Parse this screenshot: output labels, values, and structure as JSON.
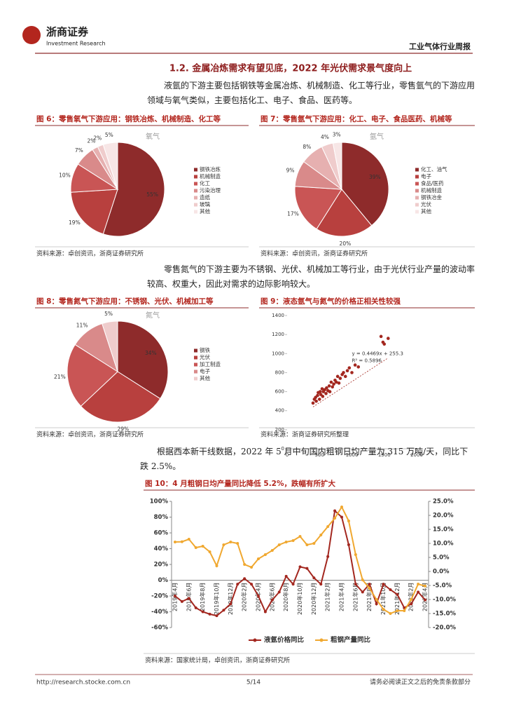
{
  "header": {
    "logo_cn": "浙商证券",
    "logo_en": "Investment Research",
    "report": "工业气体行业周报"
  },
  "section_title": "1.2. 金属冶炼需求有望见底，2022 年光伏需求景气度向上",
  "paragraphs": [
    "液氩的下游主要包括钢铁等金属冶炼、机械制造、化工等行业，零售氩气的下游应用领域与氧气类似，主要包括化工、电子、食品、医药等。",
    "零售氮气的下游主要为不锈钢、光伏、机械加工等行业，由于光伏行业产量的波动率较高、权重大，因此对需求的边际影响较大。",
    "根据西本新干线数据，2022 年 5 月中旬国内粗钢日均产量为 315 万吨/天，同比下跌 2.5%。"
  ],
  "figures": [
    {
      "title": "图 6：零售氧气下游应用：钢铁冶炼、机械制造、化工等",
      "source": "资料来源：卓创资讯，浙商证券研究所",
      "chart": {
        "type": "pie",
        "title": "氧气",
        "categories": [
          "钢铁冶炼",
          "机械制造",
          "化工",
          "污染治理",
          "造纸",
          "玻璃",
          "其他"
        ],
        "values": [
          55,
          19,
          10,
          7,
          2,
          2,
          5
        ],
        "value_labels": [
          "55%",
          "19%",
          "10%",
          "7%",
          "2%",
          "2%",
          "5%"
        ],
        "colors": [
          "#8e2b2b",
          "#b8403e",
          "#c95555",
          "#d98a8a",
          "#e6b0b0",
          "#efcccc",
          "#f7e6e6"
        ]
      }
    },
    {
      "title": "图 7：零售氩气下游应用：化工、电子、食品医药、机械等",
      "source": "资料来源：卓创资讯，浙商证券研究所",
      "chart": {
        "type": "pie",
        "title": "氩气",
        "categories": [
          "化工、油气",
          "电子",
          "食品/医药",
          "机械制造",
          "钢铁冶金",
          "光伏",
          "其他"
        ],
        "values": [
          39,
          20,
          17,
          9,
          8,
          4,
          3
        ],
        "value_labels": [
          "39%",
          "20%",
          "17%",
          "9%",
          "8%",
          "4%",
          "3%"
        ],
        "colors": [
          "#8e2b2b",
          "#b8403e",
          "#c95555",
          "#d98a8a",
          "#e6b0b0",
          "#efcccc",
          "#f7e6e6"
        ]
      }
    },
    {
      "title": "图 8：零售氮气下游应用：不锈钢、光伏、机械加工等",
      "source": "资料来源：卓创资讯，浙商证券研究所",
      "chart": {
        "type": "pie",
        "title": "氮气",
        "categories": [
          "钢铁",
          "光伏",
          "加工制造",
          "电子",
          "其他"
        ],
        "values": [
          34,
          29,
          21,
          11,
          5
        ],
        "value_labels": [
          "34%",
          "29%",
          "21%",
          "11%",
          "5%"
        ],
        "colors": [
          "#8e2b2b",
          "#b8403e",
          "#c95555",
          "#d98a8a",
          "#efcccc"
        ]
      }
    },
    {
      "title": "图 9：液态氩气与氮气的价格正相关性较强",
      "source": "资料来源：浙商证券研究所整理",
      "chart": {
        "type": "scatter",
        "color": "#a3271f",
        "annotations": [
          "y = 0.4469x + 255.3",
          "R² = 0.5896"
        ],
        "x": [
          400,
          420,
          440,
          450,
          470,
          480,
          500,
          510,
          520,
          540,
          550,
          560,
          580,
          600,
          610,
          630,
          650,
          660,
          680,
          700,
          720,
          740,
          760,
          780,
          800,
          820,
          850,
          870,
          900,
          930,
          960,
          1000,
          1050,
          1100,
          1450,
          1480,
          1500,
          1560
        ],
        "y": [
          480,
          520,
          540,
          500,
          560,
          590,
          520,
          600,
          570,
          630,
          550,
          600,
          620,
          580,
          640,
          610,
          660,
          600,
          700,
          650,
          680,
          720,
          700,
          760,
          690,
          740,
          780,
          800,
          760,
          820,
          850,
          800,
          880,
          860,
          1180,
          1120,
          1100,
          1160
        ],
        "xlim": [
          0,
          2000
        ],
        "xticks": [
          0,
          500,
          1000,
          1500,
          2000
        ],
        "ylim": [
          0,
          1400
        ],
        "yticks": [
          0,
          200,
          400,
          600,
          800,
          1000,
          1200,
          1400
        ]
      }
    },
    {
      "title": "图 10：4 月粗钢日均产量同比降低 5.2%，跌幅有所扩大",
      "source": "资料来源：国家统计局，卓创资讯，浙商证券研究所",
      "chart": {
        "type": "line",
        "categories": [
          "2019年4月",
          null,
          "2019年6月",
          null,
          "2019年8月",
          null,
          "2019年10月",
          null,
          "2019年12月",
          null,
          "2020年2月",
          null,
          "2020年4月",
          null,
          "2020年6月",
          null,
          "2020年8月",
          null,
          "2020年10月",
          null,
          "2020年12月",
          null,
          "2021年2月",
          null,
          "2021年4月",
          null,
          "2021年6月",
          null,
          "2021年8月",
          null,
          "2021年10月",
          null,
          "2021年12月",
          null,
          "2022年2月",
          null,
          "2022年4月"
        ],
        "series": [
          {
            "name": "液氩价格同比",
            "color": "#a3271f",
            "values": [
              -20,
              -27,
              -23,
              -35,
              -40,
              -43,
              -45,
              -38,
              -30,
              -5,
              2,
              -5,
              -20,
              -40,
              -25,
              -15,
              5,
              -5,
              17,
              15,
              3,
              -5,
              30,
              88,
              80,
              45,
              -5,
              -15,
              -5,
              -30,
              -5,
              -12,
              -18,
              -35,
              -30,
              -15,
              -25
            ]
          },
          {
            "name": "粗钢产量同比",
            "color": "#f0a830",
            "axis": "y2",
            "values": [
              10.5,
              10.6,
              11.5,
              8.5,
              9,
              7,
              2,
              9.5,
              10.5,
              10,
              2.5,
              1.5,
              4.5,
              6,
              7.5,
              9.5,
              10.5,
              11,
              12.5,
              9.5,
              10,
              13,
              16,
              19,
              23,
              18,
              6,
              -3,
              -6,
              -10,
              -13.5,
              -15,
              -14,
              -14,
              -10,
              -4.5,
              -5.2
            ]
          }
        ],
        "ylim": [
          -60,
          100
        ],
        "yticks": [
          {
            "value": -60,
            "label": "-60%"
          },
          {
            "value": -40,
            "label": "-40%"
          },
          {
            "value": -20,
            "label": "-20%"
          },
          {
            "value": 0,
            "label": "0%"
          },
          {
            "value": 20,
            "label": "20%"
          },
          {
            "value": 40,
            "label": "40%"
          },
          {
            "value": 60,
            "label": "60%"
          },
          {
            "value": 80,
            "label": "80%"
          },
          {
            "value": 100,
            "label": "100%"
          }
        ],
        "y2lim": [
          -20,
          25
        ],
        "y2ticks": [
          {
            "value": -20,
            "label": "-20.0%"
          },
          {
            "value": -15,
            "label": "-15.0%"
          },
          {
            "value": -10,
            "label": "-10.0%"
          },
          {
            "value": -5,
            "label": "-5.0%"
          },
          {
            "value": 0,
            "label": "0.0%"
          },
          {
            "value": 5,
            "label": "5.0%"
          },
          {
            "value": 10,
            "label": "10.0%"
          },
          {
            "value": 15,
            "label": "15.0%"
          },
          {
            "value": 20,
            "label": "20.0%"
          },
          {
            "value": 25,
            "label": "25.0%"
          }
        ]
      }
    }
  ],
  "footer": {
    "url": "http://research.stocke.com.cn",
    "page": "5/14",
    "disclaimer": "请务必阅读正文之后的免责条款部分"
  }
}
